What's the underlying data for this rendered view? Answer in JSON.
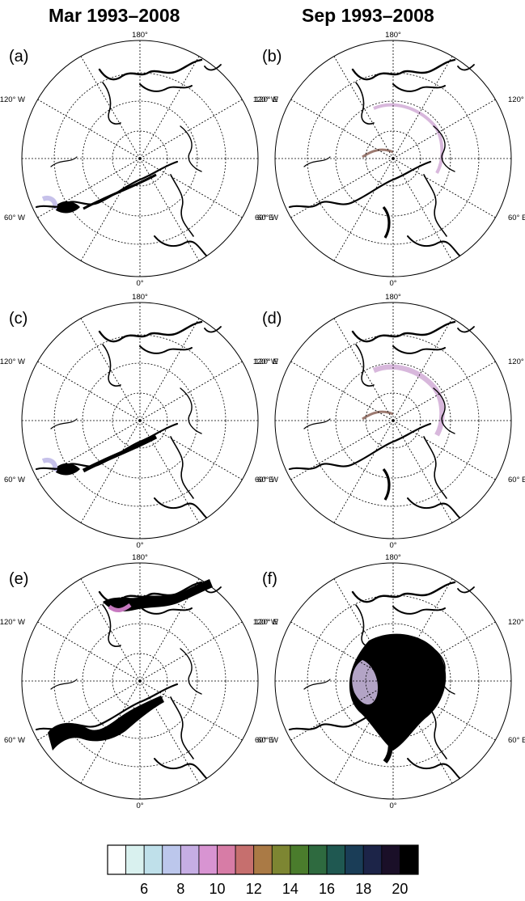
{
  "column_titles": [
    "Mar 1993–2008",
    "Sep 1993–2008"
  ],
  "panels": [
    {
      "label": "(a)",
      "season": "mar",
      "variant": "low"
    },
    {
      "label": "(b)",
      "season": "sep",
      "variant": "low"
    },
    {
      "label": "(c)",
      "season": "mar",
      "variant": "mid"
    },
    {
      "label": "(d)",
      "season": "sep",
      "variant": "mid"
    },
    {
      "label": "(e)",
      "season": "mar",
      "variant": "high"
    },
    {
      "label": "(f)",
      "season": "sep",
      "variant": "high"
    }
  ],
  "longitude_labels": {
    "top": "180°",
    "bottom": "0°",
    "upper_left": "120° W",
    "upper_right": "120° E",
    "lower_left": "60° W",
    "lower_right": "60° E"
  },
  "colorbar": {
    "colors": [
      "#ffffff",
      "#d9f1ef",
      "#bfe0ea",
      "#bcc7ec",
      "#c6aee4",
      "#d894d2",
      "#d77ca6",
      "#c66f6e",
      "#aa7a45",
      "#7d8632",
      "#4a7c2c",
      "#2e6a3f",
      "#1f5851",
      "#1a3d57",
      "#1c2448",
      "#1a0f28",
      "#000000"
    ],
    "tick_labels": [
      "6",
      "8",
      "10",
      "12",
      "14",
      "16",
      "18",
      "20"
    ]
  }
}
